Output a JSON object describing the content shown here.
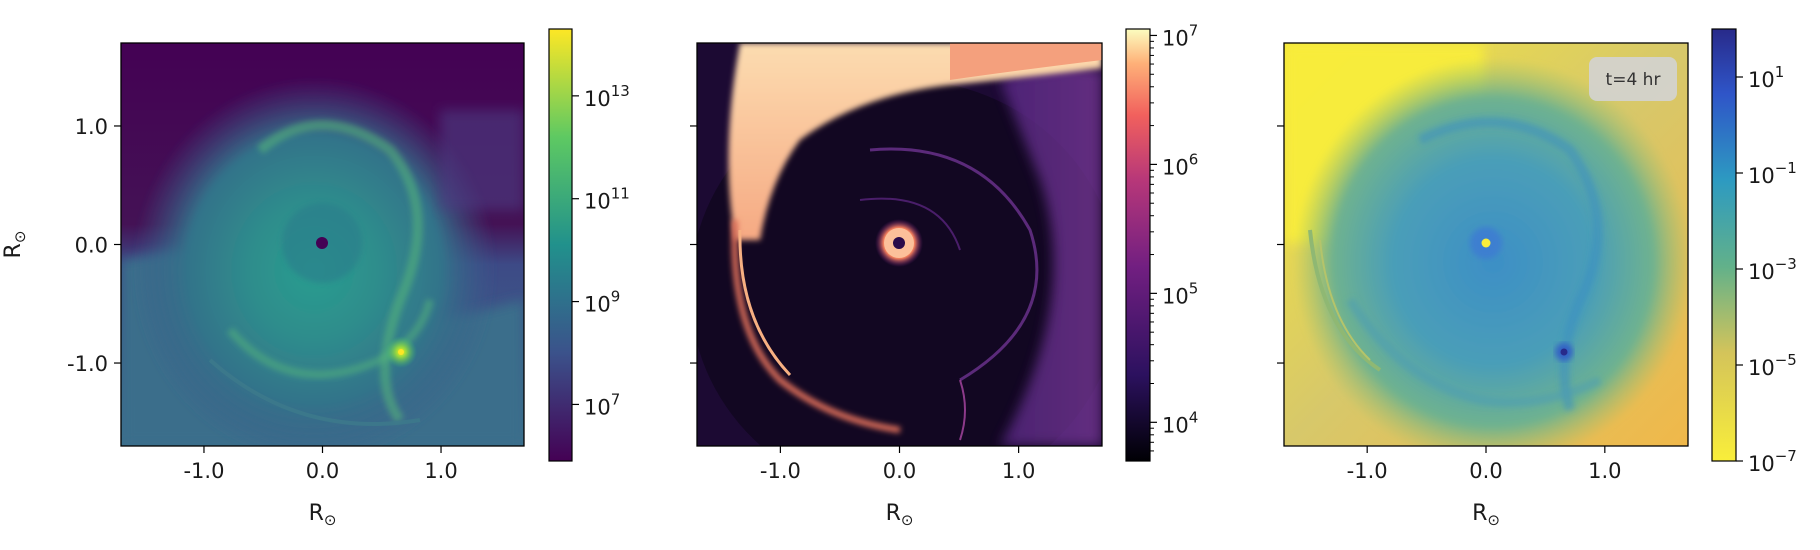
{
  "chart_data": [
    {
      "type": "heatmap",
      "panel": "left",
      "colormap": "viridis",
      "colormap_stops": [
        "#440154",
        "#3b528b",
        "#21918c",
        "#5ec962",
        "#fde725"
      ],
      "xlabel": "R",
      "xlabel_sub": "⊙",
      "ylabel": "R",
      "ylabel_sub": "⊙",
      "xlim": [
        -1.7,
        1.7
      ],
      "ylim": [
        -1.7,
        1.7
      ],
      "xticks": [
        {
          "v": -1.0,
          "label": "-1.0"
        },
        {
          "v": 0.0,
          "label": "0.0"
        },
        {
          "v": 1.0,
          "label": "1.0"
        }
      ],
      "yticks": [
        {
          "v": 1.0,
          "label": "1.0"
        },
        {
          "v": 0.0,
          "label": "0.0"
        },
        {
          "v": -1.0,
          "label": "-1.0"
        }
      ],
      "colorbar": {
        "scale": "log",
        "range_exp": [
          5.9,
          14.3
        ],
        "ticks": [
          {
            "base": "10",
            "exp": "13"
          },
          {
            "base": "10",
            "exp": "11"
          },
          {
            "base": "10",
            "exp": "9"
          },
          {
            "base": "10",
            "exp": "7"
          }
        ],
        "tick_values": [
          13,
          11,
          9,
          7
        ]
      },
      "features": [
        {
          "name": "central-star",
          "x": 0.0,
          "y": 0.02
        },
        {
          "name": "companion",
          "x": 0.67,
          "y": -0.9
        }
      ]
    },
    {
      "type": "heatmap",
      "panel": "middle",
      "colormap": "magma",
      "colormap_stops": [
        "#000004",
        "#3b0f70",
        "#8c2981",
        "#de4968",
        "#fe9f6d",
        "#fcfdbf"
      ],
      "xlabel": "R",
      "xlabel_sub": "⊙",
      "xlim": [
        -1.7,
        1.7
      ],
      "ylim": [
        -1.7,
        1.7
      ],
      "xticks": [
        {
          "v": -1.0,
          "label": "-1.0"
        },
        {
          "v": 0.0,
          "label": "0.0"
        },
        {
          "v": 1.0,
          "label": "1.0"
        }
      ],
      "colorbar": {
        "scale": "log",
        "range_exp": [
          3.7,
          7.05
        ],
        "ticks": [
          {
            "base": "10",
            "exp": "7"
          },
          {
            "base": "10",
            "exp": "6"
          },
          {
            "base": "10",
            "exp": "5"
          },
          {
            "base": "10",
            "exp": "4"
          }
        ],
        "tick_values": [
          7,
          6,
          5,
          4
        ]
      },
      "features": [
        {
          "name": "central-star",
          "x": 0.0,
          "y": 0.0
        }
      ]
    },
    {
      "type": "heatmap",
      "panel": "right",
      "colormap": "viridis-reversed-blue",
      "colormap_stops": [
        "#f9ee3a",
        "#f2c65a",
        "#62b18a",
        "#2d8fc9",
        "#2f55c8",
        "#282a8a"
      ],
      "xlabel": "R",
      "xlabel_sub": "⊙",
      "xlim": [
        -1.7,
        1.7
      ],
      "ylim": [
        -1.7,
        1.7
      ],
      "xticks": [
        {
          "v": -1.0,
          "label": "-1.0"
        },
        {
          "v": 0.0,
          "label": "0.0"
        },
        {
          "v": 1.0,
          "label": "1.0"
        }
      ],
      "annotation": "t=4 hr",
      "colorbar": {
        "scale": "log",
        "range_exp": [
          -7.0,
          2.0
        ],
        "ticks": [
          {
            "base": "10",
            "exp": "1"
          },
          {
            "base": "10",
            "exp": "−1"
          },
          {
            "base": "10",
            "exp": "−3"
          },
          {
            "base": "10",
            "exp": "−5"
          },
          {
            "base": "10",
            "exp": "−7"
          }
        ],
        "tick_values": [
          1,
          -1,
          -3,
          -5,
          -7
        ]
      },
      "features": [
        {
          "name": "central-star",
          "x": 0.0,
          "y": 0.0
        },
        {
          "name": "companion",
          "x": 0.67,
          "y": -0.9
        }
      ]
    }
  ]
}
